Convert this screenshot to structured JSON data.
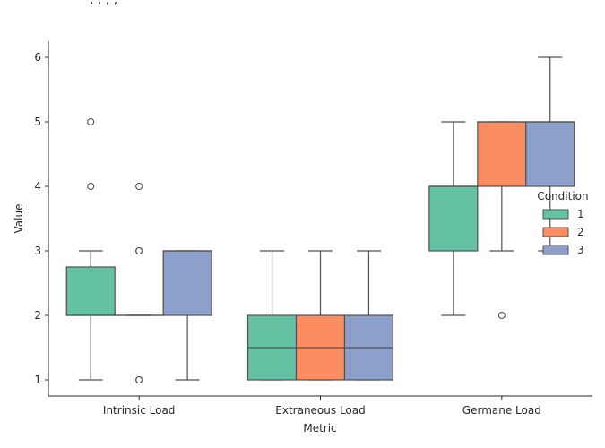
{
  "chart_data": {
    "type": "box",
    "title": ", , , ,",
    "xlabel": "Metric",
    "ylabel": "Value",
    "ylim": [
      0.75,
      6.25
    ],
    "yticks": [
      1,
      2,
      3,
      4,
      5,
      6
    ],
    "grid": false,
    "categories": [
      "Intrinsic Load",
      "Extraneous Load",
      "Germane Load"
    ],
    "legend": {
      "title": "Condition",
      "placement": "center-right",
      "entries": [
        "1",
        "2",
        "3"
      ]
    },
    "series": [
      {
        "name": "1",
        "color": "#66c2a5",
        "boxes": [
          {
            "category": "Intrinsic Load",
            "whislo": 1,
            "q1": 2,
            "med": 2,
            "q3": 2.75,
            "whishi": 3,
            "fliers": [
              4,
              5
            ]
          },
          {
            "category": "Extraneous Load",
            "whislo": 1,
            "q1": 1,
            "med": 1.5,
            "q3": 2,
            "whishi": 3,
            "fliers": []
          },
          {
            "category": "Germane Load",
            "whislo": 2,
            "q1": 3,
            "med": 4,
            "q3": 4,
            "whishi": 5,
            "fliers": []
          }
        ]
      },
      {
        "name": "2",
        "color": "#fc8d62",
        "boxes": [
          {
            "category": "Intrinsic Load",
            "whislo": 2,
            "q1": 2,
            "med": 2,
            "q3": 2,
            "whishi": 2,
            "fliers": [
              1,
              1,
              3,
              3,
              4
            ]
          },
          {
            "category": "Extraneous Load",
            "whislo": 1,
            "q1": 1,
            "med": 1.5,
            "q3": 2,
            "whishi": 3,
            "fliers": []
          },
          {
            "category": "Germane Load",
            "whislo": 3,
            "q1": 4,
            "med": 5,
            "q3": 5,
            "whishi": 5,
            "fliers": [
              2
            ]
          }
        ]
      },
      {
        "name": "3",
        "color": "#8da0cb",
        "boxes": [
          {
            "category": "Intrinsic Load",
            "whislo": 1,
            "q1": 2,
            "med": 3,
            "q3": 3,
            "whishi": 3,
            "fliers": []
          },
          {
            "category": "Extraneous Load",
            "whislo": 1,
            "q1": 1,
            "med": 1.5,
            "q3": 2,
            "whishi": 3,
            "fliers": []
          },
          {
            "category": "Germane Load",
            "whislo": 3,
            "q1": 4,
            "med": 5,
            "q3": 5,
            "whishi": 6,
            "fliers": []
          }
        ]
      }
    ]
  }
}
